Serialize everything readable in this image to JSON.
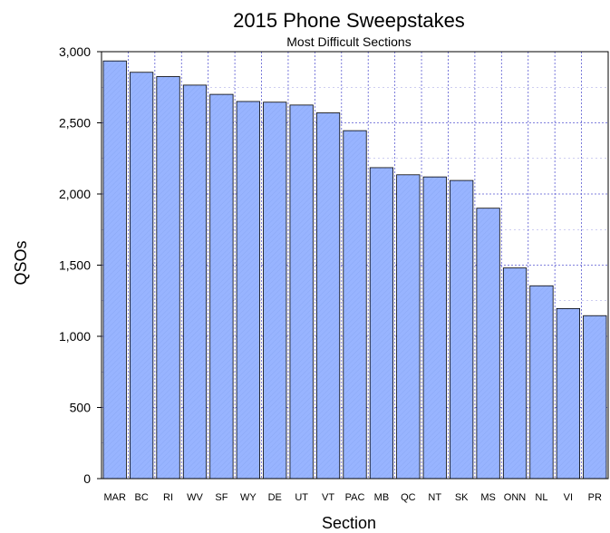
{
  "chart_data": {
    "type": "bar",
    "title": "2015 Phone Sweepstakes",
    "subtitle": "Most Difficult Sections",
    "xlabel": "Section",
    "ylabel": "QSOs",
    "ylim": [
      0,
      3000
    ],
    "yticks": [
      0,
      500,
      1000,
      1500,
      2000,
      2500,
      3000
    ],
    "ytick_labels": [
      "0",
      "500",
      "1,000",
      "1,500",
      "2,000",
      "2,500",
      "3,000"
    ],
    "grid": true,
    "categories": [
      "MAR",
      "BC",
      "RI",
      "WV",
      "SF",
      "WY",
      "DE",
      "UT",
      "VT",
      "PAC",
      "MB",
      "QC",
      "NT",
      "SK",
      "MS",
      "ONN",
      "NL",
      "VI",
      "PR"
    ],
    "values": [
      2935,
      2855,
      2825,
      2765,
      2700,
      2650,
      2645,
      2625,
      2570,
      2445,
      2185,
      2135,
      2120,
      2095,
      1900,
      1480,
      1355,
      1195,
      1145
    ],
    "bar_color": "#98b4ff",
    "bar_edge_color": "#000000",
    "grid_color": "#5a5ad2"
  }
}
